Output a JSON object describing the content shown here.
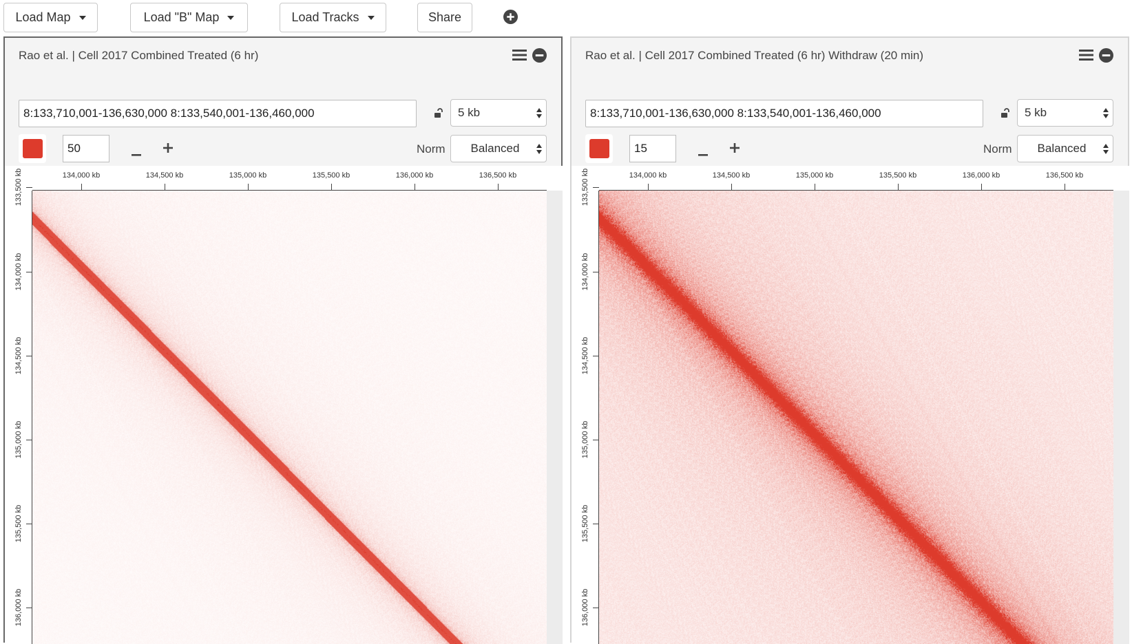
{
  "toolbar": {
    "load_map": "Load Map",
    "load_b_map": "Load \"B\" Map",
    "load_tracks": "Load Tracks",
    "share": "Share",
    "add_icon": "plus-circle-icon"
  },
  "icons": {
    "menu": "hamburger-menu-icon",
    "close": "minus-circle-icon",
    "lock": "unlock-icon",
    "decrease": "minus-icon",
    "increase": "plus-icon"
  },
  "colors": {
    "contact_color": "#dd3b2c",
    "background": "#ffffff",
    "panel_background": "#f4f4f4"
  },
  "panels": [
    {
      "title": "Rao et al. | Cell 2017 Combined Treated (6 hr)",
      "locus": "8:133,710,001-136,630,000 8:133,540,001-136,460,000",
      "resolution": "5 kb",
      "color_scale_max": "50",
      "norm_label": "Norm",
      "normalization": "Balanced",
      "x_ticks": [
        "134,000 kb",
        "134,500 kb",
        "135,000 kb",
        "135,500 kb",
        "136,000 kb",
        "136,500 kb"
      ],
      "y_ticks": [
        "133,500 kb",
        "134,000 kb",
        "134,500 kb",
        "135,000 kb",
        "135,500 kb",
        "136,000 kb"
      ]
    },
    {
      "title": "Rao et al. | Cell 2017 Combined Treated (6 hr) Withdraw (20 min)",
      "locus": "8:133,710,001-136,630,000 8:133,540,001-136,460,000",
      "resolution": "5 kb",
      "color_scale_max": "15",
      "norm_label": "Norm",
      "normalization": "Balanced",
      "x_ticks": [
        "134,000 kb",
        "134,500 kb",
        "135,000 kb",
        "135,500 kb",
        "136,000 kb",
        "136,500 kb"
      ],
      "y_ticks": [
        "133,500 kb",
        "134,000 kb",
        "134,500 kb",
        "135,000 kb",
        "135,500 kb",
        "136,000 kb"
      ]
    }
  ]
}
